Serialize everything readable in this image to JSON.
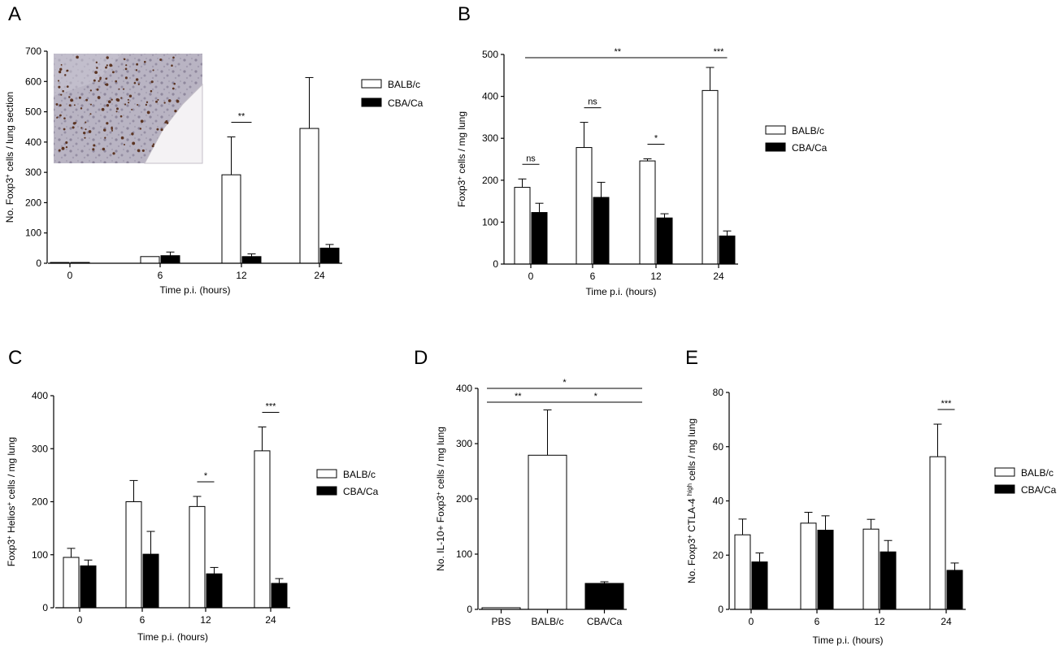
{
  "chart_data": [
    {
      "panel": "A",
      "type": "bar",
      "categories": [
        "0",
        "6",
        "12",
        "24"
      ],
      "series": [
        {
          "name": "BALB/c",
          "color": "#ffffff",
          "values": [
            2,
            22,
            292,
            445
          ],
          "errors": [
            0,
            0,
            125,
            168
          ]
        },
        {
          "name": "CBA/Ca",
          "color": "#000000",
          "values": [
            0,
            25,
            22,
            50
          ],
          "errors": [
            0,
            12,
            9,
            12
          ]
        }
      ],
      "xlabel": "Time p.i. (hours)",
      "ylabel": {
        "pre": "No. Foxp3",
        "sup": "+",
        "post": " cells / lung section"
      },
      "ylim": [
        0,
        700
      ],
      "yticks": [
        "0",
        "100",
        "200",
        "300",
        "400",
        "500",
        "600",
        "700"
      ],
      "significance": [
        {
          "category": "12",
          "label": "**"
        }
      ],
      "inset": "histology-image",
      "legend": "right"
    },
    {
      "panel": "B",
      "type": "bar",
      "categories": [
        "0",
        "6",
        "12",
        "24"
      ],
      "series": [
        {
          "name": "BALB/c",
          "color": "#ffffff",
          "values": [
            183,
            278,
            246,
            414
          ],
          "errors": [
            20,
            60,
            5,
            55
          ]
        },
        {
          "name": "CBA/Ca",
          "color": "#000000",
          "values": [
            123,
            159,
            110,
            67
          ],
          "errors": [
            22,
            36,
            10,
            12
          ]
        }
      ],
      "xlabel": "Time p.i. (hours)",
      "ylabel": {
        "pre": "Foxp3",
        "sup": "+",
        "post": " cells / mg lung"
      },
      "ylim": [
        0,
        500
      ],
      "yticks": [
        "0",
        "100",
        "200",
        "300",
        "400",
        "500"
      ],
      "significance": [
        {
          "category": "0",
          "label": "ns"
        },
        {
          "category": "6",
          "label": "ns"
        },
        {
          "category": "12",
          "label": "*"
        },
        {
          "category": "24",
          "label": "***"
        },
        {
          "from": "0",
          "to": "24",
          "label": "**"
        }
      ],
      "legend": "right"
    },
    {
      "panel": "C",
      "type": "bar",
      "categories": [
        "0",
        "6",
        "12",
        "24"
      ],
      "series": [
        {
          "name": "BALB/c",
          "color": "#ffffff",
          "values": [
            95,
            200,
            191,
            296
          ],
          "errors": [
            17,
            40,
            19,
            45
          ]
        },
        {
          "name": "CBA/Ca",
          "color": "#000000",
          "values": [
            79,
            101,
            64,
            46
          ],
          "errors": [
            11,
            43,
            12,
            9
          ]
        }
      ],
      "xlabel": "Time p.i. (hours)",
      "ylabel": {
        "pre": "Foxp3",
        "sup": "+",
        "mid": " Helios",
        "sup2": "+",
        "post": " cells / mg lung"
      },
      "ylim": [
        0,
        400
      ],
      "yticks": [
        "0",
        "100",
        "200",
        "300",
        "400"
      ],
      "significance": [
        {
          "category": "12",
          "label": "*"
        },
        {
          "category": "24",
          "label": "***"
        }
      ],
      "legend": "right"
    },
    {
      "panel": "D",
      "type": "bar",
      "categories": [
        "PBS",
        "BALB/c",
        "CBA/Ca"
      ],
      "series": [
        {
          "fills": [
            "#ffffff",
            "#ffffff",
            "#000000"
          ],
          "values": [
            3,
            279,
            47
          ],
          "errors": [
            0,
            82,
            3
          ]
        }
      ],
      "xlabel": "",
      "ylabel": {
        "pre": "No. IL-10+ Foxp3",
        "sup": "+",
        "post": " cells / mg lung"
      },
      "ylim": [
        0,
        400
      ],
      "yticks": [
        "0",
        "100",
        "200",
        "300",
        "400"
      ],
      "significance": [
        {
          "from": "PBS",
          "to": "BALB/c",
          "label": "**"
        },
        {
          "from": "BALB/c",
          "to": "CBA/Ca",
          "label": "*"
        },
        {
          "from": "PBS",
          "to": "CBA/Ca",
          "label": "*"
        }
      ]
    },
    {
      "panel": "E",
      "type": "bar",
      "categories": [
        "0",
        "6",
        "12",
        "24"
      ],
      "series": [
        {
          "name": "BALB/c",
          "color": "#ffffff",
          "values": [
            27.5,
            31.8,
            29.6,
            56.3
          ],
          "errors": [
            5.8,
            4,
            3.6,
            12
          ]
        },
        {
          "name": "CBA/Ca",
          "color": "#000000",
          "values": [
            17.5,
            29.2,
            21.2,
            14.4
          ],
          "errors": [
            3.3,
            5.3,
            4.2,
            2.7
          ]
        }
      ],
      "xlabel": "Time p.i. (hours)",
      "ylabel": {
        "pre": "No. Foxp3",
        "sup": "+",
        "mid": " CTLA-4 ",
        "sup2": "high",
        "post": " cells / mg lung"
      },
      "ylim": [
        0,
        80
      ],
      "yticks": [
        "0",
        "20",
        "40",
        "60",
        "80"
      ],
      "significance": [
        {
          "category": "24",
          "label": "***"
        }
      ],
      "legend": "right"
    }
  ]
}
